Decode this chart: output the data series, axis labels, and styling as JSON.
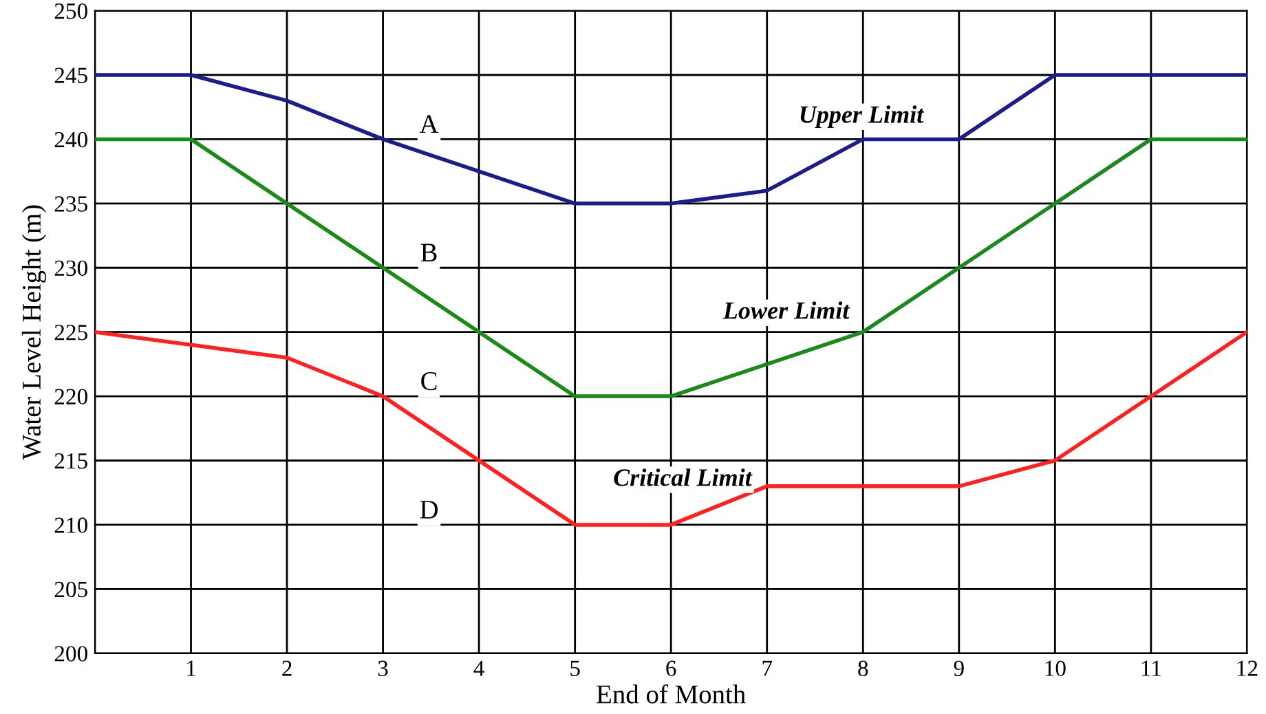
{
  "chart_data": {
    "type": "line",
    "xlabel": "End of Month",
    "ylabel": "Water Level Height (m)",
    "series": [
      {
        "name": "Upper Limit",
        "color": "#1c1c8e",
        "x": [
          0,
          1,
          2,
          3,
          5,
          6,
          7,
          8,
          9,
          10,
          11,
          12
        ],
        "values": [
          245,
          245,
          243,
          240,
          235,
          235,
          236,
          240,
          240,
          245,
          245,
          245
        ]
      },
      {
        "name": "Lower Limit",
        "color": "#1a8a1a",
        "x": [
          0,
          1,
          5,
          6,
          8,
          11,
          12
        ],
        "values": [
          240,
          240,
          220,
          220,
          225,
          240,
          240
        ]
      },
      {
        "name": "Critical Limit",
        "color": "#ff2020",
        "x": [
          0,
          1,
          2,
          3,
          5,
          6,
          7,
          9,
          10,
          12
        ],
        "values": [
          225,
          224,
          223,
          220,
          210,
          210,
          213,
          213,
          215,
          225
        ]
      }
    ],
    "annotations": [
      "A",
      "B",
      "C",
      "D"
    ],
    "xlim": [
      0,
      12
    ],
    "xticks": [
      {
        "value": 0,
        "label": null
      },
      1,
      2,
      3,
      4,
      5,
      6,
      7,
      8,
      9,
      10,
      11,
      12
    ],
    "ylim": [
      200,
      250
    ],
    "yticks": [
      200,
      205,
      210,
      215,
      220,
      225,
      230,
      235,
      240,
      245,
      250
    ],
    "grid": true,
    "legend": false,
    "marker": "none",
    "line_style": "solid"
  }
}
